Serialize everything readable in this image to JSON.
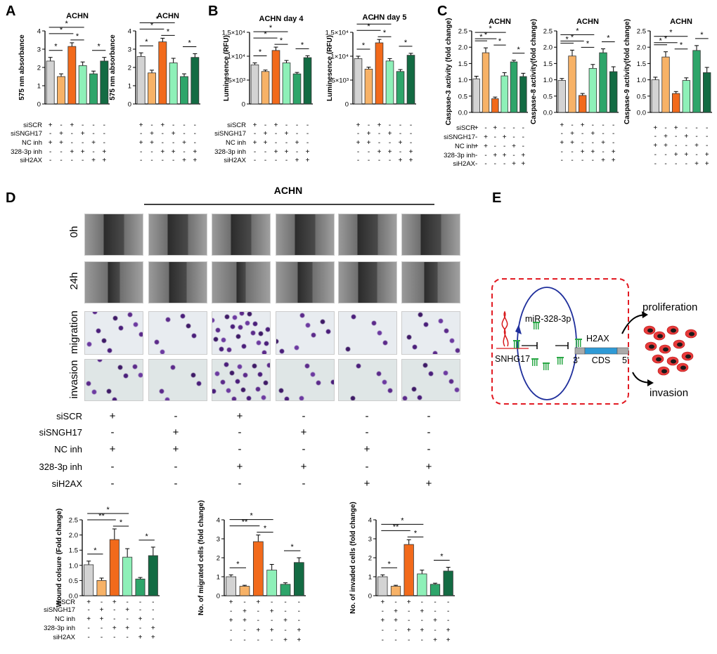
{
  "panels": {
    "A": "A",
    "B": "B",
    "C": "C",
    "D": "D",
    "E": "E"
  },
  "titles": {
    "a1": "ACHN",
    "a2": "ACHN",
    "b1": "ACHN  day 4",
    "b2": "ACHN  day 5",
    "c1": "ACHN",
    "c2": "ACHN",
    "c3": "ACHN",
    "d": "ACHN"
  },
  "rows": {
    "top": [
      "siSCR",
      "siSNGH17",
      "NC inh",
      "328-3p inh",
      "siH2AX"
    ],
    "d": [
      "siSCR",
      "siSNGH17",
      "NC inh",
      "328-3p  inh",
      "siH2AX"
    ],
    "bottom": [
      "siSCR",
      "siSNGH17",
      "NC inh",
      "328-3p  inh",
      "siH2AX"
    ]
  },
  "signs": [
    [
      "+",
      "-",
      "+",
      "-",
      "-",
      "-"
    ],
    [
      "-",
      "+",
      "-",
      "+",
      "-",
      "-"
    ],
    [
      "+",
      "+",
      "-",
      "-",
      "+",
      "-"
    ],
    [
      "-",
      "-",
      "+",
      "+",
      "-",
      "+"
    ],
    [
      "-",
      "-",
      "-",
      "-",
      "+",
      "+"
    ]
  ],
  "image_labels": [
    "0h",
    "24h",
    "migration",
    "invasion"
  ],
  "colors": [
    "#d3d3d3",
    "#f7b267",
    "#f26a1b",
    "#8ef0b8",
    "#2ea56a",
    "#136b43"
  ],
  "diagram": {
    "mir": "miR-328-3p",
    "lnc": "SNHG17",
    "gene": "H2AX",
    "three": "3'",
    "cds": "CDS",
    "five": "5'",
    "proliferation": "proliferation",
    "invasion": "invasion"
  },
  "chart_data": [
    {
      "id": "a1",
      "type": "bar",
      "title": "ACHN",
      "ylabel": "575 nm absorbance",
      "ylim": [
        0,
        4
      ],
      "yticks": [
        "0",
        "1",
        "2",
        "3",
        "4"
      ],
      "values": [
        2.35,
        1.5,
        3.15,
        2.1,
        1.65,
        2.35
      ],
      "errors": [
        0.2,
        0.15,
        0.2,
        0.2,
        0.15,
        0.2
      ],
      "sig": [
        {
          "a": 0,
          "b": 1,
          "t": "*"
        },
        {
          "a": 0,
          "b": 2,
          "t": "*"
        },
        {
          "a": 0,
          "b": 3,
          "t": "*"
        },
        {
          "a": 2,
          "b": 3,
          "t": "*"
        },
        {
          "a": 4,
          "b": 5,
          "t": "*"
        }
      ]
    },
    {
      "id": "a2",
      "type": "bar",
      "title": "ACHN",
      "ylabel": "575 nm absorbance",
      "ylim": [
        0,
        4
      ],
      "yticks": [
        "0",
        "1",
        "2",
        "3",
        "4"
      ],
      "values": [
        2.6,
        1.7,
        3.4,
        2.25,
        1.5,
        2.55
      ],
      "errors": [
        0.2,
        0.15,
        0.2,
        0.25,
        0.15,
        0.2
      ],
      "sig": [
        {
          "a": 0,
          "b": 1,
          "t": "*"
        },
        {
          "a": 0,
          "b": 2,
          "t": "*"
        },
        {
          "a": 0,
          "b": 3,
          "t": "*"
        },
        {
          "a": 2,
          "b": 3,
          "t": "*"
        },
        {
          "a": 4,
          "b": 5,
          "t": "*"
        }
      ]
    },
    {
      "id": "b1",
      "type": "bar",
      "title": "ACHN  day 4",
      "ylabel": "Luminesence (RFU)",
      "ylim": [
        0,
        15000
      ],
      "yticks": [
        "0",
        "5×10³",
        "1×10⁴",
        "1.5×10⁴"
      ],
      "values": [
        8200,
        6800,
        11200,
        8600,
        6300,
        9700
      ],
      "errors": [
        400,
        300,
        700,
        500,
        300,
        400
      ],
      "sig": [
        {
          "a": 0,
          "b": 1,
          "t": "*"
        },
        {
          "a": 0,
          "b": 2,
          "t": "*"
        },
        {
          "a": 0,
          "b": 3,
          "t": "*"
        },
        {
          "a": 2,
          "b": 3,
          "t": "*"
        },
        {
          "a": 4,
          "b": 5,
          "t": "*"
        }
      ]
    },
    {
      "id": "b2",
      "type": "bar",
      "title": "ACHN  day 5",
      "ylabel": "Luminesence (RFU)",
      "ylim": [
        0,
        15000
      ],
      "yticks": [
        "0",
        "5×10³",
        "1×10⁴",
        "1.5×10⁴"
      ],
      "values": [
        9500,
        7300,
        12800,
        9000,
        6800,
        10200
      ],
      "errors": [
        500,
        400,
        700,
        500,
        400,
        400
      ],
      "sig": [
        {
          "a": 0,
          "b": 1,
          "t": "*"
        },
        {
          "a": 0,
          "b": 2,
          "t": "*"
        },
        {
          "a": 0,
          "b": 3,
          "t": "*"
        },
        {
          "a": 2,
          "b": 3,
          "t": "*"
        },
        {
          "a": 4,
          "b": 5,
          "t": "*"
        }
      ]
    },
    {
      "id": "c1",
      "type": "bar",
      "title": "ACHN",
      "ylabel": "Caspase-3 activity (fold change)",
      "ylim": [
        0,
        2.5
      ],
      "yticks": [
        "0.0",
        "0.5",
        "1.0",
        "1.5",
        "2.0",
        "2.5"
      ],
      "values": [
        1.03,
        1.83,
        0.42,
        1.12,
        1.55,
        1.1
      ],
      "errors": [
        0.08,
        0.15,
        0.05,
        0.1,
        0.05,
        0.1
      ],
      "sig": [
        {
          "a": 0,
          "b": 1,
          "t": "*"
        },
        {
          "a": 0,
          "b": 2,
          "t": "*"
        },
        {
          "a": 0,
          "b": 3,
          "t": "*"
        },
        {
          "a": 2,
          "b": 3,
          "t": "*"
        },
        {
          "a": 4,
          "b": 5,
          "t": "*"
        }
      ]
    },
    {
      "id": "c2",
      "type": "bar",
      "title": "ACHN",
      "ylabel": "Caspase-8 activity(fold change)",
      "ylim": [
        0,
        2.5
      ],
      "yticks": [
        "0.0",
        "0.5",
        "1.0",
        "1.5",
        "2.0",
        "2.5"
      ],
      "values": [
        0.98,
        1.73,
        0.52,
        1.35,
        1.83,
        1.25
      ],
      "errors": [
        0.06,
        0.18,
        0.06,
        0.12,
        0.12,
        0.15
      ],
      "sig": [
        {
          "a": 0,
          "b": 1,
          "t": "*"
        },
        {
          "a": 0,
          "b": 2,
          "t": "*"
        },
        {
          "a": 0,
          "b": 3,
          "t": "*"
        },
        {
          "a": 2,
          "b": 3,
          "t": "*"
        },
        {
          "a": 4,
          "b": 5,
          "t": "*"
        }
      ]
    },
    {
      "id": "c3",
      "type": "bar",
      "title": "ACHN",
      "ylabel": "Caspase-9 activity(fold change)",
      "ylim": [
        0,
        2.5
      ],
      "yticks": [
        "0.0",
        "0.5",
        "1.0",
        "1.5",
        "2.0",
        "2.5"
      ],
      "values": [
        1.0,
        1.7,
        0.58,
        0.98,
        1.9,
        1.22
      ],
      "errors": [
        0.08,
        0.16,
        0.06,
        0.08,
        0.15,
        0.16
      ],
      "sig": [
        {
          "a": 0,
          "b": 1,
          "t": "*"
        },
        {
          "a": 0,
          "b": 2,
          "t": "*"
        },
        {
          "a": 0,
          "b": 3,
          "t": "*"
        },
        {
          "a": 2,
          "b": 3,
          "t": "*"
        },
        {
          "a": 4,
          "b": 5,
          "t": "*"
        }
      ]
    },
    {
      "id": "d1",
      "type": "bar",
      "title": "",
      "ylabel": "Wound colsure (Fold change)",
      "ylim": [
        0,
        2.5
      ],
      "yticks": [
        "0.0",
        "0.5",
        "1.0",
        "1.5",
        "2.0",
        "2.5"
      ],
      "values": [
        1.02,
        0.5,
        1.85,
        1.27,
        0.55,
        1.32
      ],
      "errors": [
        0.12,
        0.08,
        0.35,
        0.28,
        0.05,
        0.28
      ],
      "sig": [
        {
          "a": 0,
          "b": 1,
          "t": "*"
        },
        {
          "a": 0,
          "b": 2,
          "t": "**"
        },
        {
          "a": 0,
          "b": 3,
          "t": "*"
        },
        {
          "a": 2,
          "b": 3,
          "t": "*"
        },
        {
          "a": 4,
          "b": 5,
          "t": "*"
        }
      ]
    },
    {
      "id": "d2",
      "type": "bar",
      "title": "",
      "ylabel": "No. of migrated cells (fold change)",
      "ylim": [
        0,
        4
      ],
      "yticks": [
        "0",
        "1",
        "2",
        "3",
        "4"
      ],
      "values": [
        1.0,
        0.5,
        2.85,
        1.35,
        0.6,
        1.75
      ],
      "errors": [
        0.1,
        0.05,
        0.35,
        0.3,
        0.08,
        0.25
      ],
      "sig": [
        {
          "a": 0,
          "b": 1,
          "t": "*"
        },
        {
          "a": 0,
          "b": 2,
          "t": "**"
        },
        {
          "a": 0,
          "b": 3,
          "t": "*"
        },
        {
          "a": 2,
          "b": 3,
          "t": "*"
        },
        {
          "a": 4,
          "b": 5,
          "t": "*"
        }
      ]
    },
    {
      "id": "d3",
      "type": "bar",
      "title": "",
      "ylabel": "No. of invaded cells (fold change)",
      "ylim": [
        0,
        4
      ],
      "yticks": [
        "0",
        "1",
        "2",
        "3",
        "4"
      ],
      "values": [
        1.0,
        0.5,
        2.7,
        1.15,
        0.6,
        1.3
      ],
      "errors": [
        0.1,
        0.05,
        0.25,
        0.2,
        0.06,
        0.2
      ],
      "sig": [
        {
          "a": 0,
          "b": 1,
          "t": "*"
        },
        {
          "a": 0,
          "b": 2,
          "t": "**"
        },
        {
          "a": 0,
          "b": 3,
          "t": "*"
        },
        {
          "a": 2,
          "b": 3,
          "t": "*"
        },
        {
          "a": 4,
          "b": 5,
          "t": "*"
        }
      ]
    }
  ]
}
